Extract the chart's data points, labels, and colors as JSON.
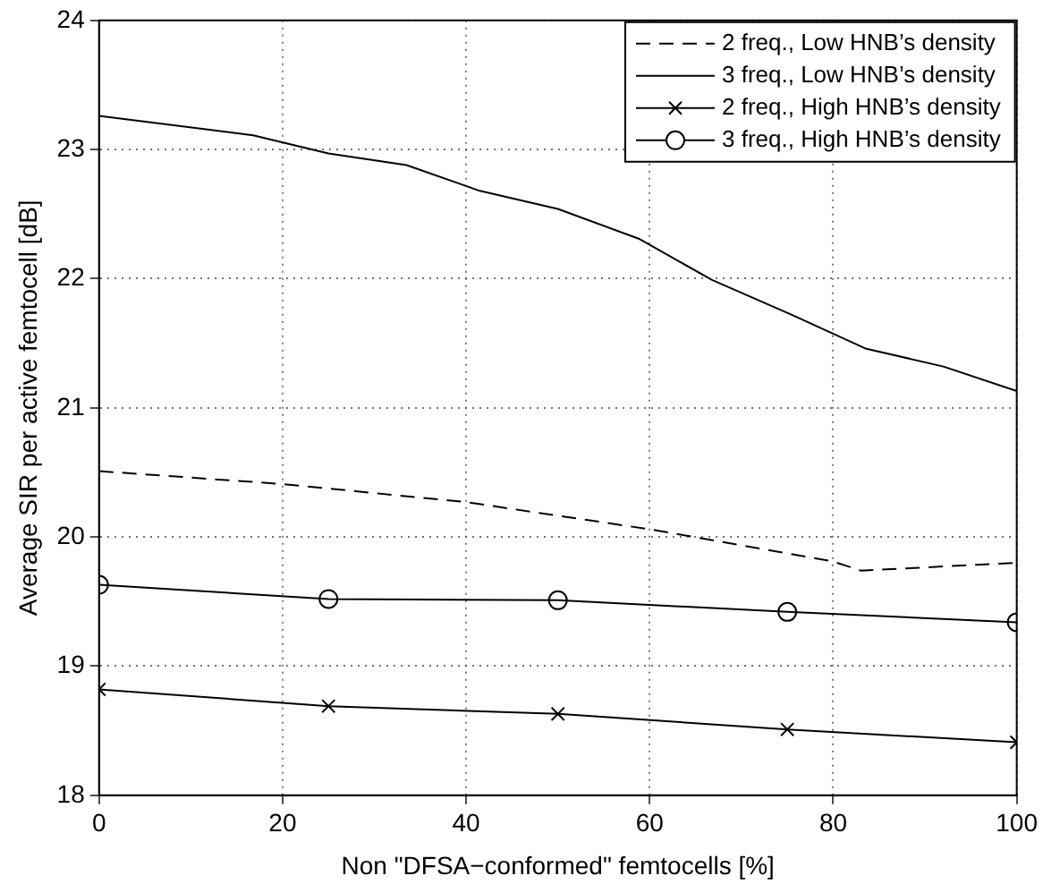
{
  "chart_data": {
    "type": "line",
    "xlabel": "Non \"DFSA−conformed\" femtocells [%]",
    "ylabel": "Average SIR per active femtocell [dB]",
    "xlim": [
      0,
      100
    ],
    "xticks": [
      0,
      20,
      40,
      60,
      80,
      100
    ],
    "ylim": [
      18,
      24
    ],
    "yticks": [
      18,
      19,
      20,
      21,
      22,
      23,
      24
    ],
    "grid": true,
    "legend": "top right",
    "series": [
      {
        "name": "2 freq., Low HNB’s density",
        "color": "#000000",
        "line_style": "dashed",
        "marker": "none",
        "x": [
          0,
          20,
          40,
          60,
          80,
          83,
          100
        ],
        "values": [
          20.51,
          20.41,
          20.27,
          20.06,
          19.81,
          19.74,
          19.8
        ]
      },
      {
        "name": "3 freq., Low HNB’s density",
        "color": "#000000",
        "line_style": "solid",
        "marker": "none",
        "x": [
          0,
          16.8,
          25,
          33.5,
          41.5,
          50,
          58.8,
          66.8,
          75.5,
          83.5,
          92,
          100
        ],
        "values": [
          23.26,
          23.11,
          22.97,
          22.88,
          22.68,
          22.54,
          22.31,
          21.99,
          21.72,
          21.46,
          21.32,
          21.13
        ]
      },
      {
        "name": "2 freq., High HNB’s density",
        "color": "#000000",
        "line_style": "solid",
        "marker": "cross",
        "x": [
          0,
          25,
          50,
          75,
          100
        ],
        "values": [
          18.82,
          18.69,
          18.63,
          18.51,
          18.41
        ]
      },
      {
        "name": "3 freq., High HNB’s density",
        "color": "#000000",
        "line_style": "solid",
        "marker": "circle",
        "x": [
          0,
          25,
          50,
          75,
          100
        ],
        "values": [
          19.63,
          19.52,
          19.51,
          19.42,
          19.34
        ]
      }
    ]
  }
}
